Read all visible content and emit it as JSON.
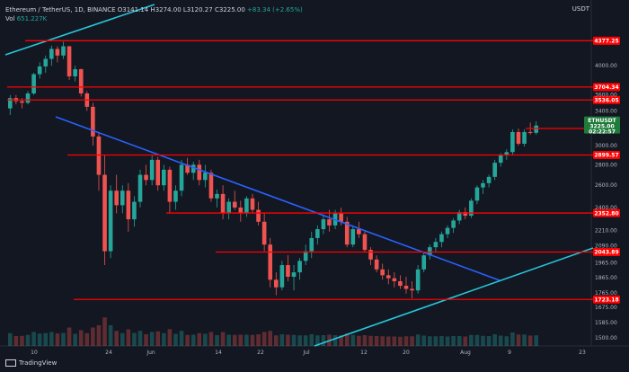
{
  "header": {
    "title": "Ethereum / TetherUS, 1D, BINANCE",
    "ohlc": "O3141.14 H3274.00 L3120.27 C3225.00",
    "change": "+83.34 (+2.65%)",
    "volume_label": "Vol",
    "volume_value": "651.227K",
    "currency": "USDT"
  },
  "footer": {
    "brand": "TradingView"
  },
  "colors": {
    "background": "#131722",
    "up": "#26a69a",
    "down": "#ef5350",
    "level_line": "#ff0000",
    "trend_blue": "#2962ff",
    "trend_cyan": "#26c6da",
    "ticker_badge": "#1e7b3a"
  },
  "chart_data": {
    "type": "candlestick",
    "symbol": "ETHUSDT",
    "timeframe": "1D",
    "x_labels": [
      "10",
      "24",
      "Jun",
      "14",
      "22",
      "Jul",
      "12",
      "20",
      "Aug",
      "9",
      "23"
    ],
    "y_ticks": [
      4000.0,
      3600.0,
      3400.0,
      3000.0,
      2800.0,
      2600.0,
      2400.0,
      2210.0,
      2090.0,
      1965.0,
      1865.0,
      1765.0,
      1675.0,
      1585.0,
      1500.0
    ],
    "y_tick_labels": [
      "4000.00",
      "3600.00",
      "3400.00",
      "3000.00",
      "2800.00",
      "2600.00",
      "2400.00",
      "2210.00",
      "2090.00",
      "1965.00",
      "1865.00",
      "1765.00",
      "1675.00",
      "1585.00",
      "1500.00"
    ],
    "y_range": [
      1520,
      4600
    ],
    "horizontal_levels": [
      {
        "label": "4377.25",
        "value": 4377.25
      },
      {
        "label": "3704.34",
        "value": 3704.34
      },
      {
        "label": "3536.05",
        "value": 3536.05
      },
      {
        "label": "3190.12",
        "value": 3190.12
      },
      {
        "label": "2899.57",
        "value": 2899.57
      },
      {
        "label": "2352.80",
        "value": 2352.8
      },
      {
        "label": "2043.89",
        "value": 2043.89
      },
      {
        "label": "1723.18",
        "value": 1723.18
      }
    ],
    "current_price": {
      "label": "ETHUSDT",
      "value": "3225.00",
      "countdown": "02:22:57",
      "price": 3225.0
    },
    "candles": [
      [
        3430,
        3600,
        3350,
        3560
      ],
      [
        3560,
        3600,
        3480,
        3520
      ],
      [
        3520,
        3560,
        3430,
        3500
      ],
      [
        3500,
        3650,
        3480,
        3620
      ],
      [
        3620,
        3900,
        3600,
        3880
      ],
      [
        3880,
        4050,
        3820,
        3990
      ],
      [
        3990,
        4150,
        3900,
        4100
      ],
      [
        4100,
        4300,
        4000,
        4250
      ],
      [
        4250,
        4290,
        4050,
        4150
      ],
      [
        4150,
        4360,
        4100,
        4290
      ],
      [
        4290,
        4300,
        3800,
        3850
      ],
      [
        3850,
        4000,
        3780,
        3950
      ],
      [
        3950,
        3960,
        3580,
        3620
      ],
      [
        3620,
        3650,
        3400,
        3450
      ],
      [
        3450,
        3500,
        3000,
        3100
      ],
      [
        3100,
        3150,
        2550,
        2700
      ],
      [
        2700,
        2900,
        1950,
        2050
      ],
      [
        2050,
        2600,
        2000,
        2550
      ],
      [
        2550,
        2700,
        2350,
        2420
      ],
      [
        2420,
        2600,
        2350,
        2550
      ],
      [
        2550,
        2620,
        2200,
        2300
      ],
      [
        2300,
        2500,
        2240,
        2450
      ],
      [
        2450,
        2750,
        2400,
        2700
      ],
      [
        2700,
        2800,
        2600,
        2650
      ],
      [
        2650,
        2900,
        2600,
        2850
      ],
      [
        2850,
        2880,
        2550,
        2600
      ],
      [
        2600,
        2800,
        2550,
        2750
      ],
      [
        2750,
        2780,
        2350,
        2450
      ],
      [
        2450,
        2600,
        2380,
        2550
      ],
      [
        2550,
        2850,
        2500,
        2800
      ],
      [
        2800,
        2870,
        2700,
        2720
      ],
      [
        2720,
        2830,
        2650,
        2800
      ],
      [
        2800,
        2850,
        2600,
        2650
      ],
      [
        2650,
        2800,
        2580,
        2720
      ],
      [
        2720,
        2750,
        2450,
        2480
      ],
      [
        2480,
        2560,
        2400,
        2520
      ],
      [
        2520,
        2600,
        2300,
        2350
      ],
      [
        2350,
        2480,
        2300,
        2450
      ],
      [
        2450,
        2550,
        2380,
        2400
      ],
      [
        2400,
        2460,
        2280,
        2350
      ],
      [
        2350,
        2500,
        2320,
        2480
      ],
      [
        2480,
        2520,
        2350,
        2380
      ],
      [
        2380,
        2450,
        2250,
        2280
      ],
      [
        2280,
        2350,
        2050,
        2100
      ],
      [
        2100,
        2150,
        1800,
        1850
      ],
      [
        1850,
        1900,
        1750,
        1800
      ],
      [
        1800,
        1980,
        1780,
        1950
      ],
      [
        1950,
        2020,
        1840,
        1870
      ],
      [
        1870,
        1950,
        1780,
        1900
      ],
      [
        1900,
        2000,
        1850,
        1980
      ],
      [
        1980,
        2100,
        1950,
        2050
      ],
      [
        2050,
        2200,
        2000,
        2150
      ],
      [
        2150,
        2250,
        2100,
        2220
      ],
      [
        2220,
        2340,
        2180,
        2300
      ],
      [
        2300,
        2380,
        2200,
        2250
      ],
      [
        2250,
        2380,
        2220,
        2350
      ],
      [
        2350,
        2400,
        2250,
        2280
      ],
      [
        2280,
        2320,
        2080,
        2100
      ],
      [
        2100,
        2250,
        2080,
        2220
      ],
      [
        2220,
        2280,
        2150,
        2180
      ],
      [
        2180,
        2200,
        2040,
        2060
      ],
      [
        2060,
        2080,
        1950,
        1990
      ],
      [
        1990,
        2020,
        1900,
        1920
      ],
      [
        1920,
        1960,
        1850,
        1880
      ],
      [
        1880,
        1920,
        1820,
        1860
      ],
      [
        1860,
        1900,
        1800,
        1840
      ],
      [
        1840,
        1880,
        1790,
        1810
      ],
      [
        1810,
        1870,
        1760,
        1790
      ],
      [
        1790,
        1840,
        1730,
        1780
      ],
      [
        1780,
        1950,
        1760,
        1920
      ],
      [
        1920,
        2040,
        1900,
        2020
      ],
      [
        2020,
        2100,
        1990,
        2080
      ],
      [
        2080,
        2150,
        2040,
        2120
      ],
      [
        2120,
        2200,
        2080,
        2180
      ],
      [
        2180,
        2250,
        2150,
        2230
      ],
      [
        2230,
        2310,
        2190,
        2290
      ],
      [
        2290,
        2380,
        2260,
        2360
      ],
      [
        2360,
        2400,
        2300,
        2330
      ],
      [
        2330,
        2480,
        2310,
        2460
      ],
      [
        2460,
        2600,
        2430,
        2580
      ],
      [
        2580,
        2650,
        2520,
        2620
      ],
      [
        2620,
        2700,
        2580,
        2680
      ],
      [
        2680,
        2850,
        2650,
        2820
      ],
      [
        2820,
        2920,
        2780,
        2900
      ],
      [
        2900,
        2960,
        2850,
        2930
      ],
      [
        2930,
        3180,
        2900,
        3150
      ],
      [
        3150,
        3190,
        3000,
        3020
      ],
      [
        3020,
        3180,
        2990,
        3150
      ],
      [
        3150,
        3260,
        3120,
        3141
      ],
      [
        3141.14,
        3274,
        3120.27,
        3225
      ]
    ]
  }
}
